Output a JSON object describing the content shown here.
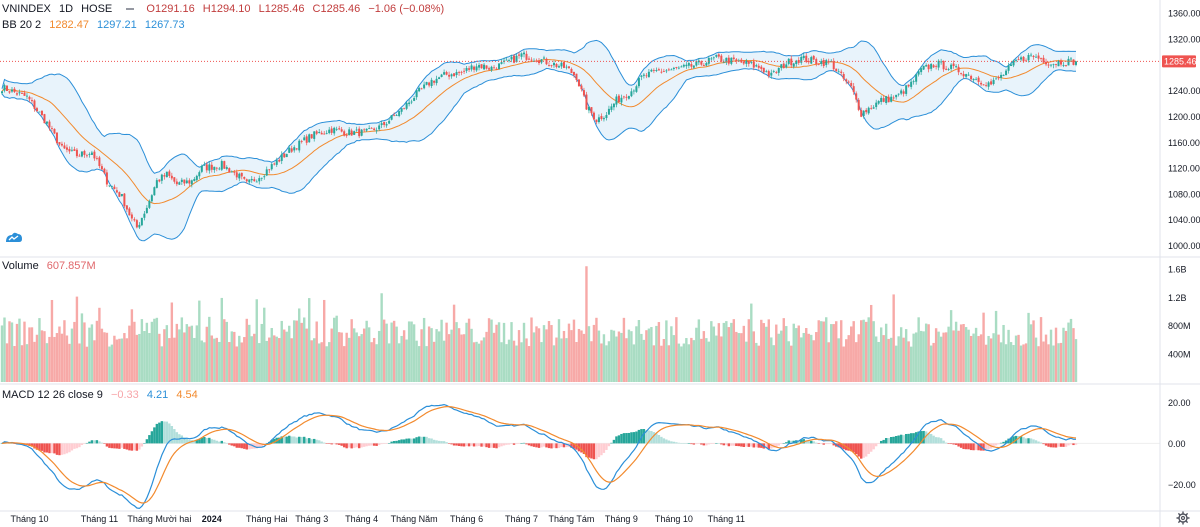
{
  "legend": {
    "symbol": "VNINDEX",
    "interval": "1D",
    "exchange": "HOSE",
    "open": "O1291.16",
    "high": "H1294.10",
    "low": "L1285.46",
    "close": "C1285.46",
    "change": "−1.06 (−0.08%)",
    "bb_label": "BB 20 2",
    "bb_basis": "1282.47",
    "bb_upper": "1297.21",
    "bb_lower": "1267.73",
    "volume_label": "Volume",
    "volume_value": "607.857M",
    "macd_label": "MACD 12 26 close 9",
    "macd_hist": "−0.33",
    "macd_macd": "4.21",
    "macd_signal": "4.54"
  },
  "colors": {
    "up": "#26a69a",
    "down": "#ef5350",
    "vol_up": "#a9dcc3",
    "vol_down": "#f7a9a7",
    "bb_basis": "#f28a2e",
    "bb_band": "#2b8fd8",
    "bb_fill": "#e8f3fb",
    "macd_line": "#2b8fd8",
    "signal_line": "#f28a2e",
    "hist_up_strong": "#26a69a",
    "hist_up_weak": "#b2dfdb",
    "hist_down_strong": "#ef5350",
    "hist_down_weak": "#ffcdd2",
    "last_price": "#ef5350"
  },
  "chart_data": {
    "type": "candlestick",
    "price_axis": {
      "ticks": [
        "1360.00",
        "1320.00",
        "1280.00",
        "1240.00",
        "1200.00",
        "1160.00",
        "1120.00",
        "1080.00",
        "1040.00",
        "1000.00"
      ],
      "range": [
        990,
        1365
      ]
    },
    "last_price_label": "1285.46",
    "volume_axis": {
      "ticks": [
        "1.6B",
        "1.2B",
        "800M",
        "400M"
      ],
      "range": [
        0,
        1700
      ]
    },
    "macd_axis": {
      "ticks": [
        "20.00",
        "0.00",
        "−20.00"
      ],
      "range": [
        -32,
        28
      ]
    },
    "time_axis": [
      "Tháng 10",
      "Tháng 11",
      "Tháng Mười hai",
      "2024",
      "Tháng Hai",
      "Tháng 3",
      "Tháng 4",
      "Tháng Năm",
      "Tháng 6",
      "Tháng 7",
      "Tháng Tám",
      "Tháng 9",
      "Tháng 10",
      "Tháng 11"
    ],
    "anchors": [
      [
        0,
        1245
      ],
      [
        10,
        1230
      ],
      [
        18,
        1190
      ],
      [
        24,
        1150
      ],
      [
        30,
        1140
      ],
      [
        36,
        1145
      ],
      [
        42,
        1100
      ],
      [
        48,
        1075
      ],
      [
        52,
        1040
      ],
      [
        54,
        1028
      ],
      [
        58,
        1060
      ],
      [
        62,
        1100
      ],
      [
        66,
        1110
      ],
      [
        70,
        1095
      ],
      [
        76,
        1100
      ],
      [
        80,
        1120
      ],
      [
        88,
        1125
      ],
      [
        94,
        1110
      ],
      [
        98,
        1095
      ],
      [
        104,
        1110
      ],
      [
        110,
        1130
      ],
      [
        116,
        1150
      ],
      [
        124,
        1170
      ],
      [
        132,
        1180
      ],
      [
        138,
        1175
      ],
      [
        146,
        1175
      ],
      [
        152,
        1185
      ],
      [
        160,
        1210
      ],
      [
        166,
        1235
      ],
      [
        172,
        1255
      ],
      [
        178,
        1265
      ],
      [
        184,
        1268
      ],
      [
        190,
        1280
      ],
      [
        196,
        1275
      ],
      [
        202,
        1283
      ],
      [
        208,
        1295
      ],
      [
        214,
        1290
      ],
      [
        220,
        1282
      ],
      [
        226,
        1275
      ],
      [
        230,
        1262
      ],
      [
        234,
        1215
      ],
      [
        238,
        1195
      ],
      [
        242,
        1205
      ],
      [
        246,
        1225
      ],
      [
        252,
        1240
      ],
      [
        256,
        1260
      ],
      [
        262,
        1270
      ],
      [
        268,
        1272
      ],
      [
        274,
        1276
      ],
      [
        280,
        1282
      ],
      [
        286,
        1290
      ],
      [
        292,
        1286
      ],
      [
        298,
        1282
      ],
      [
        304,
        1275
      ],
      [
        308,
        1263
      ],
      [
        314,
        1283
      ],
      [
        320,
        1290
      ],
      [
        326,
        1285
      ],
      [
        332,
        1283
      ],
      [
        336,
        1262
      ],
      [
        340,
        1245
      ],
      [
        344,
        1205
      ],
      [
        348,
        1215
      ],
      [
        352,
        1225
      ],
      [
        358,
        1230
      ],
      [
        364,
        1250
      ],
      [
        368,
        1272
      ],
      [
        374,
        1282
      ],
      [
        380,
        1275
      ],
      [
        384,
        1270
      ],
      [
        388,
        1262
      ],
      [
        392,
        1255
      ],
      [
        396,
        1250
      ],
      [
        400,
        1262
      ],
      [
        406,
        1285
      ],
      [
        412,
        1294
      ],
      [
        416,
        1290
      ],
      [
        420,
        1282
      ],
      [
        424,
        1285
      ],
      [
        430,
        1285.46
      ]
    ]
  }
}
